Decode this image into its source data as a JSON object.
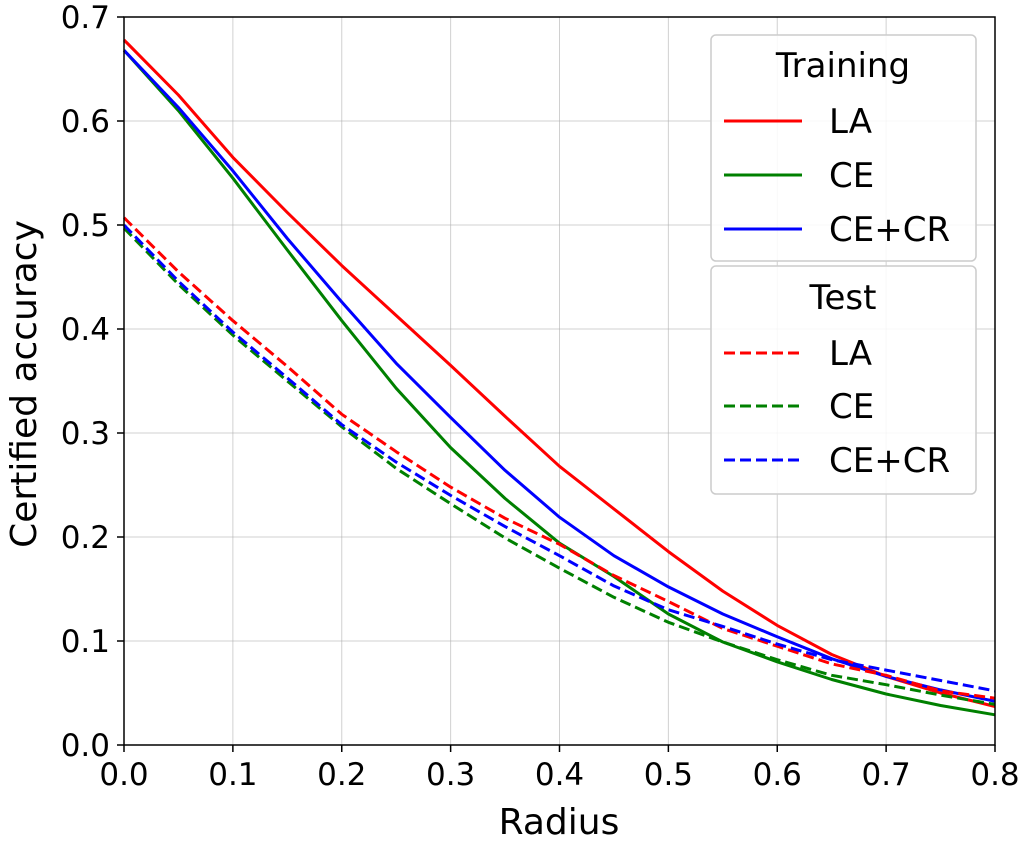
{
  "chart_data": {
    "type": "line",
    "title": "",
    "xlabel": "Radius",
    "ylabel": "Certified accuracy",
    "xlim": [
      0.0,
      0.8
    ],
    "ylim": [
      0.0,
      0.7
    ],
    "grid": true,
    "xticks": [
      0.0,
      0.1,
      0.2,
      0.3,
      0.4,
      0.5,
      0.6,
      0.7,
      0.8
    ],
    "yticks": [
      0.0,
      0.1,
      0.2,
      0.3,
      0.4,
      0.5,
      0.6,
      0.7
    ],
    "xtick_labels": [
      "0.0",
      "0.1",
      "0.2",
      "0.3",
      "0.4",
      "0.5",
      "0.6",
      "0.7",
      "0.8"
    ],
    "ytick_labels": [
      "0.0",
      "0.1",
      "0.2",
      "0.3",
      "0.4",
      "0.5",
      "0.6",
      "0.7"
    ],
    "x": [
      0.0,
      0.05,
      0.1,
      0.15,
      0.2,
      0.25,
      0.3,
      0.35,
      0.4,
      0.45,
      0.5,
      0.55,
      0.6,
      0.65,
      0.7,
      0.75,
      0.8
    ],
    "colors": {
      "LA": "#ff0000",
      "CE": "#008000",
      "CE+CR": "#0000ff"
    },
    "legends": [
      {
        "title": "Training",
        "location": "upper-right",
        "entries": [
          "LA",
          "CE",
          "CE+CR"
        ],
        "style": "solid"
      },
      {
        "title": "Test",
        "location": "right",
        "entries": [
          "LA",
          "CE",
          "CE+CR"
        ],
        "style": "dashed"
      }
    ],
    "series": [
      {
        "name": "LA",
        "group": "Training",
        "style": "solid",
        "color": "#ff0000",
        "values": [
          0.678,
          0.625,
          0.565,
          0.512,
          0.461,
          0.413,
          0.365,
          0.316,
          0.268,
          0.227,
          0.186,
          0.148,
          0.115,
          0.087,
          0.066,
          0.05,
          0.037
        ]
      },
      {
        "name": "CE",
        "group": "Training",
        "style": "solid",
        "color": "#008000",
        "values": [
          0.668,
          0.61,
          0.545,
          0.476,
          0.408,
          0.343,
          0.286,
          0.237,
          0.194,
          0.162,
          0.126,
          0.099,
          0.08,
          0.063,
          0.049,
          0.038,
          0.029
        ]
      },
      {
        "name": "CE+CR",
        "group": "Training",
        "style": "solid",
        "color": "#0000ff",
        "values": [
          0.668,
          0.613,
          0.552,
          0.487,
          0.426,
          0.367,
          0.315,
          0.264,
          0.219,
          0.182,
          0.152,
          0.126,
          0.104,
          0.083,
          0.066,
          0.053,
          0.042
        ]
      },
      {
        "name": "LA",
        "group": "Test",
        "style": "dashed",
        "color": "#ff0000",
        "values": [
          0.507,
          0.455,
          0.408,
          0.364,
          0.318,
          0.282,
          0.248,
          0.218,
          0.193,
          0.163,
          0.138,
          0.112,
          0.095,
          0.078,
          0.067,
          0.052,
          0.045
        ]
      },
      {
        "name": "CE",
        "group": "Test",
        "style": "dashed",
        "color": "#008000",
        "values": [
          0.497,
          0.443,
          0.394,
          0.35,
          0.306,
          0.266,
          0.232,
          0.199,
          0.17,
          0.142,
          0.118,
          0.099,
          0.082,
          0.067,
          0.058,
          0.048,
          0.039
        ]
      },
      {
        "name": "CE+CR",
        "group": "Test",
        "style": "dashed",
        "color": "#0000ff",
        "values": [
          0.5,
          0.446,
          0.397,
          0.353,
          0.308,
          0.272,
          0.24,
          0.21,
          0.182,
          0.153,
          0.13,
          0.114,
          0.097,
          0.082,
          0.072,
          0.062,
          0.052
        ]
      }
    ]
  }
}
